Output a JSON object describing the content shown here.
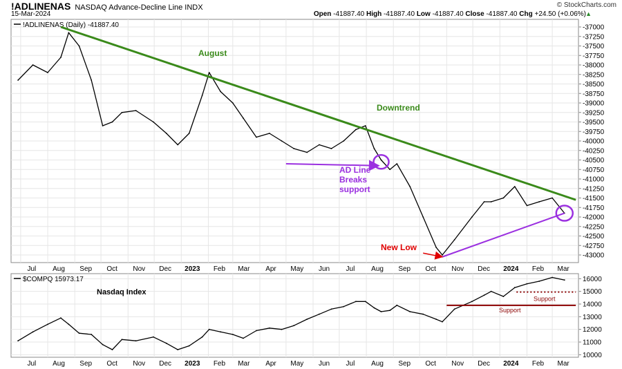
{
  "header": {
    "symbol": "!ADLINENAS",
    "description": "NASDAQ Advance-Decline Line INDX",
    "date": "15-Mar-2024",
    "brand": "© StockCharts.com",
    "open_label": "Open",
    "open": "-41887.40",
    "high_label": "High",
    "high": "-41887.40",
    "low_label": "Low",
    "low": "-41887.40",
    "close_label": "Close",
    "close": "-41887.40",
    "chg_label": "Chg",
    "chg": "+24.50 (+0.06%)"
  },
  "colors": {
    "trend_green": "#3a8a1a",
    "support_purple": "#9b30e0",
    "annotation_red": "#e00000",
    "support_darkred": "#8b0000",
    "grid": "#e6e6e6",
    "series": "#000000"
  },
  "chart_data": [
    {
      "type": "line",
      "legend": "!ADLINENAS (Daily) -41887.40",
      "ylim": [
        -43200,
        -36800
      ],
      "yticks": [
        "-37000",
        "-37250",
        "-37500",
        "-37750",
        "-38000",
        "-38250",
        "-38500",
        "-38750",
        "-39000",
        "-39250",
        "-39500",
        "-39750",
        "-40000",
        "-40250",
        "-40500",
        "-40750",
        "-41000",
        "-41250",
        "-41500",
        "-41750",
        "-42000",
        "-42250",
        "-42500",
        "-42750",
        "-43000"
      ],
      "xticks": [
        "Jul",
        "Aug",
        "Sep",
        "Oct",
        "Nov",
        "Dec",
        "2023",
        "Feb",
        "Mar",
        "Apr",
        "May",
        "Jun",
        "Jul",
        "Aug",
        "Sep",
        "Oct",
        "Nov",
        "Dec",
        "2024",
        "Feb",
        "Mar"
      ],
      "x": [
        "2022-06-28",
        "2022-07-15",
        "2022-08-01",
        "2022-08-16",
        "2022-08-25",
        "2022-09-06",
        "2022-09-20",
        "2022-10-03",
        "2022-10-14",
        "2022-10-25",
        "2022-11-10",
        "2022-11-30",
        "2022-12-15",
        "2022-12-28",
        "2023-01-10",
        "2023-01-25",
        "2023-02-02",
        "2023-02-15",
        "2023-03-01",
        "2023-03-13",
        "2023-03-28",
        "2023-04-12",
        "2023-04-26",
        "2023-05-10",
        "2023-05-25",
        "2023-06-08",
        "2023-06-22",
        "2023-07-06",
        "2023-07-20",
        "2023-07-31",
        "2023-08-10",
        "2023-08-18",
        "2023-08-28",
        "2023-09-05",
        "2023-09-20",
        "2023-10-05",
        "2023-10-20",
        "2023-10-27",
        "2023-11-10",
        "2023-11-30",
        "2023-12-14",
        "2023-12-22",
        "2024-01-05",
        "2024-01-18",
        "2024-02-01",
        "2024-02-15",
        "2024-03-01",
        "2024-03-15"
      ],
      "series": [
        {
          "values": [
            -38400,
            -38000,
            -38200,
            -37800,
            -37150,
            -37500,
            -38400,
            -39600,
            -39500,
            -39250,
            -39200,
            -39500,
            -39800,
            -40100,
            -39800,
            -38800,
            -38200,
            -38700,
            -39000,
            -39400,
            -39900,
            -39800,
            -40000,
            -40200,
            -40300,
            -40100,
            -40200,
            -40000,
            -39700,
            -39600,
            -40200,
            -40500,
            -40750,
            -40600,
            -41200,
            -42000,
            -42800,
            -43000,
            -42600,
            -42000,
            -41600,
            -41600,
            -41500,
            -41200,
            -41700,
            -41600,
            -41500,
            -41900
          ]
        }
      ],
      "annotations": {
        "august": "August",
        "downtrend": "Downtrend",
        "breaks": [
          "AD Line",
          "Breaks",
          "support"
        ],
        "new_low": "New Low"
      },
      "trendlines": [
        {
          "name": "downtrend",
          "from": [
            "2022-08-16",
            -37000
          ],
          "to": [
            "2024-03-28",
            -41550
          ]
        },
        {
          "name": "support",
          "from": [
            "2023-10-27",
            -43050
          ],
          "to": [
            "2024-03-15",
            -41900
          ]
        },
        {
          "name": "support-break-arrow",
          "from": [
            "2023-05-01",
            -40600
          ],
          "to": [
            "2023-08-15",
            -40650
          ]
        },
        {
          "name": "new-low-arrow",
          "from": [
            "2023-10-05",
            -42950
          ],
          "to": [
            "2023-10-27",
            -43050
          ]
        }
      ]
    },
    {
      "type": "line",
      "legend": "$COMPQ 15973.17",
      "title": "Nasdaq Index",
      "ylim": [
        9800,
        16400
      ],
      "yticks": [
        "10000",
        "11000",
        "12000",
        "13000",
        "14000",
        "15000",
        "16000"
      ],
      "xticks": [
        "Jul",
        "Aug",
        "Sep",
        "Oct",
        "Nov",
        "Dec",
        "2023",
        "Feb",
        "Mar",
        "Apr",
        "May",
        "Jun",
        "Jul",
        "Aug",
        "Sep",
        "Oct",
        "Nov",
        "Dec",
        "2024",
        "Feb",
        "Mar"
      ],
      "x": [
        "2022-06-28",
        "2022-07-15",
        "2022-08-01",
        "2022-08-16",
        "2022-08-25",
        "2022-09-06",
        "2022-09-20",
        "2022-10-03",
        "2022-10-14",
        "2022-10-25",
        "2022-11-10",
        "2022-11-30",
        "2022-12-15",
        "2022-12-28",
        "2023-01-10",
        "2023-01-25",
        "2023-02-02",
        "2023-02-15",
        "2023-03-01",
        "2023-03-13",
        "2023-03-28",
        "2023-04-12",
        "2023-04-26",
        "2023-05-10",
        "2023-05-25",
        "2023-06-08",
        "2023-06-22",
        "2023-07-06",
        "2023-07-20",
        "2023-07-31",
        "2023-08-10",
        "2023-08-18",
        "2023-08-28",
        "2023-09-05",
        "2023-09-20",
        "2023-10-05",
        "2023-10-20",
        "2023-10-27",
        "2023-11-10",
        "2023-11-30",
        "2023-12-14",
        "2023-12-22",
        "2024-01-05",
        "2024-01-18",
        "2024-02-01",
        "2024-02-15",
        "2024-03-01",
        "2024-03-15"
      ],
      "series": [
        {
          "values": [
            11100,
            11800,
            12400,
            12900,
            12400,
            11700,
            11600,
            10800,
            10400,
            11200,
            11100,
            11400,
            10900,
            10400,
            10700,
            11400,
            12000,
            11800,
            11600,
            11300,
            11900,
            12100,
            12000,
            12300,
            12800,
            13200,
            13600,
            13800,
            14200,
            14200,
            13700,
            13400,
            13500,
            13900,
            13400,
            13200,
            12800,
            12600,
            13600,
            14200,
            14700,
            15000,
            14600,
            15300,
            15600,
            15800,
            16100,
            15900
          ]
        }
      ],
      "support_lines": [
        {
          "label": "Support",
          "style": "dotted",
          "value": 14950,
          "from": "2024-01-20",
          "to": "2024-03-28"
        },
        {
          "label": "Support",
          "style": "solid",
          "value": 13900,
          "from": "2023-11-01",
          "to": "2024-03-28"
        }
      ]
    }
  ]
}
